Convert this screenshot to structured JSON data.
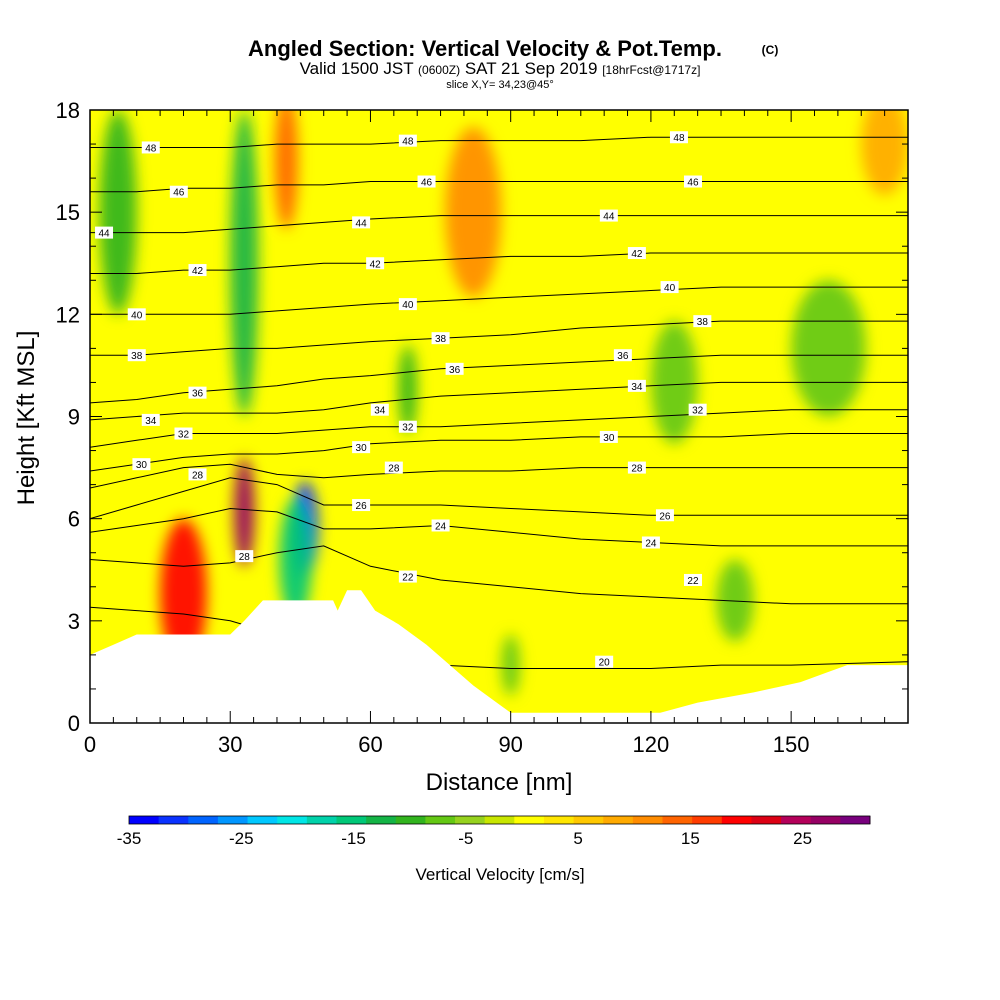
{
  "chart_data": {
    "type": "heatmap",
    "title": "Angled Section: Vertical Velocity & Pot.Temp.",
    "copyright": "(C)",
    "subtitle_valid": "Valid 1500 JST",
    "subtitle_utc": "(0600Z)",
    "subtitle_date": "SAT 21 Sep 2019",
    "subtitle_fcst": "[18hrFcst@1717z]",
    "slice": "slice X,Y= 34,23@45°",
    "xlabel": "Distance [nm]",
    "ylabel": "Height [Kft MSL]",
    "xlim": [
      0,
      175
    ],
    "ylim": [
      0,
      18
    ],
    "xticks": [
      0,
      30,
      60,
      90,
      120,
      150
    ],
    "yticks": [
      0,
      3,
      6,
      9,
      12,
      15,
      18
    ],
    "colorbar": {
      "label": "Vertical Velocity [cm/s]",
      "min": -35,
      "max": 31,
      "ticks": [
        -35,
        -25,
        -15,
        -5,
        5,
        15,
        25
      ],
      "colors": [
        "#0000ff",
        "#0a32ff",
        "#0064ff",
        "#0096ff",
        "#00c8ff",
        "#00e6e6",
        "#00d2aa",
        "#00c878",
        "#14b446",
        "#32b41e",
        "#64c814",
        "#96d21e",
        "#c8e600",
        "#ffff00",
        "#ffe600",
        "#ffc800",
        "#ffaa00",
        "#ff8c00",
        "#ff6400",
        "#ff3c00",
        "#ff0000",
        "#dc0014",
        "#b4005a",
        "#960064",
        "#78007d"
      ]
    },
    "terrain": [
      [
        0,
        2.0
      ],
      [
        5,
        2.3
      ],
      [
        10,
        2.6
      ],
      [
        30,
        2.6
      ],
      [
        33,
        3.0
      ],
      [
        37,
        3.6
      ],
      [
        52,
        3.6
      ],
      [
        53,
        3.3
      ],
      [
        55,
        3.9
      ],
      [
        58,
        3.9
      ],
      [
        61,
        3.3
      ],
      [
        66,
        2.9
      ],
      [
        72,
        2.3
      ],
      [
        77,
        1.7
      ],
      [
        82,
        1.1
      ],
      [
        87,
        0.6
      ],
      [
        90,
        0.3
      ],
      [
        122,
        0.3
      ],
      [
        130,
        0.6
      ],
      [
        142,
        0.9
      ],
      [
        152,
        1.2
      ],
      [
        158,
        1.5
      ],
      [
        162,
        1.7
      ],
      [
        175,
        1.7
      ]
    ],
    "theta_contours": [
      {
        "value": 20,
        "heights": [
          3.4,
          3.3,
          3.2,
          3.0,
          2.6,
          2.2,
          1.9,
          1.7,
          1.6,
          1.6,
          1.6,
          1.7,
          1.7,
          1.8
        ]
      },
      {
        "value": 22,
        "heights": [
          4.8,
          4.7,
          4.6,
          4.7,
          5.0,
          5.2,
          4.6,
          4.2,
          4.0,
          3.8,
          3.7,
          3.6,
          3.5,
          3.5
        ]
      },
      {
        "value": 24,
        "heights": [
          5.6,
          5.8,
          6.0,
          6.3,
          6.2,
          5.7,
          5.7,
          5.8,
          5.6,
          5.4,
          5.3,
          5.2,
          5.2,
          5.2
        ]
      },
      {
        "value": 26,
        "heights": [
          6.0,
          6.4,
          6.8,
          7.2,
          7.0,
          6.4,
          6.4,
          6.4,
          6.3,
          6.2,
          6.1,
          6.1,
          6.1,
          6.1
        ]
      },
      {
        "value": 28,
        "heights": [
          6.9,
          7.2,
          7.5,
          7.6,
          7.3,
          7.2,
          7.3,
          7.4,
          7.4,
          7.5,
          7.5,
          7.5,
          7.5,
          7.5
        ]
      },
      {
        "value": 30,
        "heights": [
          7.4,
          7.6,
          7.8,
          7.9,
          7.9,
          8.0,
          8.2,
          8.3,
          8.3,
          8.4,
          8.4,
          8.4,
          8.5,
          8.5
        ]
      },
      {
        "value": 32,
        "heights": [
          8.1,
          8.3,
          8.5,
          8.5,
          8.5,
          8.6,
          8.7,
          8.7,
          8.8,
          8.9,
          9.0,
          9.1,
          9.2,
          9.2
        ]
      },
      {
        "value": 34,
        "heights": [
          8.9,
          9.0,
          9.1,
          9.1,
          9.1,
          9.2,
          9.4,
          9.6,
          9.7,
          9.8,
          9.9,
          10.0,
          10.0,
          10.0
        ]
      },
      {
        "value": 36,
        "heights": [
          9.4,
          9.5,
          9.7,
          9.8,
          9.9,
          10.1,
          10.2,
          10.4,
          10.5,
          10.6,
          10.7,
          10.8,
          10.8,
          10.8
        ]
      },
      {
        "value": 38,
        "heights": [
          10.8,
          10.8,
          10.9,
          11.0,
          11.0,
          11.1,
          11.2,
          11.3,
          11.4,
          11.6,
          11.7,
          11.8,
          11.8,
          11.8
        ]
      },
      {
        "value": 40,
        "heights": [
          12.0,
          12.0,
          12.0,
          12.0,
          12.1,
          12.2,
          12.3,
          12.4,
          12.5,
          12.6,
          12.7,
          12.8,
          12.8,
          12.8
        ]
      },
      {
        "value": 42,
        "heights": [
          13.2,
          13.2,
          13.3,
          13.3,
          13.4,
          13.5,
          13.5,
          13.6,
          13.7,
          13.7,
          13.8,
          13.8,
          13.8,
          13.8
        ]
      },
      {
        "value": 44,
        "heights": [
          14.4,
          14.4,
          14.4,
          14.5,
          14.6,
          14.7,
          14.8,
          14.9,
          14.9,
          14.9,
          14.9,
          14.9,
          14.9,
          14.9
        ]
      },
      {
        "value": 46,
        "heights": [
          15.6,
          15.6,
          15.7,
          15.7,
          15.8,
          15.8,
          15.9,
          15.9,
          15.9,
          15.9,
          15.9,
          15.9,
          15.9,
          15.9
        ]
      },
      {
        "value": 48,
        "heights": [
          16.9,
          16.9,
          16.9,
          16.9,
          17.0,
          17.0,
          17.0,
          17.1,
          17.1,
          17.1,
          17.2,
          17.2,
          17.2,
          17.2
        ]
      }
    ],
    "contour_x": [
      0,
      10,
      20,
      30,
      40,
      50,
      60,
      75,
      90,
      105,
      120,
      135,
      150,
      175
    ],
    "contour_labels": [
      {
        "text": "48",
        "x": 13,
        "y": 16.9
      },
      {
        "text": "48",
        "x": 68,
        "y": 17.1
      },
      {
        "text": "48",
        "x": 126,
        "y": 17.2
      },
      {
        "text": "46",
        "x": 19,
        "y": 15.6
      },
      {
        "text": "46",
        "x": 72,
        "y": 15.9
      },
      {
        "text": "46",
        "x": 129,
        "y": 15.9
      },
      {
        "text": "44",
        "x": 3,
        "y": 14.4
      },
      {
        "text": "44",
        "x": 58,
        "y": 14.7
      },
      {
        "text": "44",
        "x": 111,
        "y": 14.9
      },
      {
        "text": "42",
        "x": 23,
        "y": 13.3
      },
      {
        "text": "42",
        "x": 61,
        "y": 13.5
      },
      {
        "text": "42",
        "x": 117,
        "y": 13.8
      },
      {
        "text": "40",
        "x": 10,
        "y": 12.0
      },
      {
        "text": "40",
        "x": 68,
        "y": 12.3
      },
      {
        "text": "40",
        "x": 124,
        "y": 12.8
      },
      {
        "text": "38",
        "x": 10,
        "y": 10.8
      },
      {
        "text": "38",
        "x": 75,
        "y": 11.3
      },
      {
        "text": "38",
        "x": 131,
        "y": 11.8
      },
      {
        "text": "36",
        "x": 23,
        "y": 9.7
      },
      {
        "text": "36",
        "x": 78,
        "y": 10.4
      },
      {
        "text": "36",
        "x": 114,
        "y": 10.8
      },
      {
        "text": "34",
        "x": 13,
        "y": 8.9
      },
      {
        "text": "34",
        "x": 62,
        "y": 9.2
      },
      {
        "text": "34",
        "x": 117,
        "y": 9.9
      },
      {
        "text": "32",
        "x": 20,
        "y": 8.5
      },
      {
        "text": "32",
        "x": 68,
        "y": 8.7
      },
      {
        "text": "32",
        "x": 130,
        "y": 9.2
      },
      {
        "text": "30",
        "x": 11,
        "y": 7.6
      },
      {
        "text": "30",
        "x": 58,
        "y": 8.1
      },
      {
        "text": "30",
        "x": 111,
        "y": 8.4
      },
      {
        "text": "28",
        "x": 23,
        "y": 7.3
      },
      {
        "text": "28",
        "x": 65,
        "y": 7.5
      },
      {
        "text": "28",
        "x": 117,
        "y": 7.5
      },
      {
        "text": "26",
        "x": 58,
        "y": 6.4
      },
      {
        "text": "26",
        "x": 123,
        "y": 6.1
      },
      {
        "text": "24",
        "x": 75,
        "y": 5.8
      },
      {
        "text": "24",
        "x": 120,
        "y": 5.3
      },
      {
        "text": "22",
        "x": 68,
        "y": 4.3
      },
      {
        "text": "22",
        "x": 129,
        "y": 4.2
      },
      {
        "text": "28",
        "x": 33,
        "y": 4.9
      },
      {
        "text": "20",
        "x": 110,
        "y": 1.8
      }
    ],
    "velocity_features": [
      {
        "x": 20,
        "y": 3.8,
        "rx": 5,
        "ry": 2.2,
        "value": 20
      },
      {
        "x": 33,
        "y": 6.2,
        "rx": 2.2,
        "ry": 1.6,
        "value": 28
      },
      {
        "x": 46,
        "y": 5.7,
        "rx": 2.8,
        "ry": 1.4,
        "value": -32
      },
      {
        "x": 44,
        "y": 4.8,
        "rx": 3.5,
        "ry": 1.8,
        "value": -15
      },
      {
        "x": 33,
        "y": 13.5,
        "rx": 3,
        "ry": 4.5,
        "value": -13
      },
      {
        "x": 6,
        "y": 15,
        "rx": 4,
        "ry": 3,
        "value": -11
      },
      {
        "x": 42,
        "y": 16.5,
        "rx": 2.5,
        "ry": 2,
        "value": 14
      },
      {
        "x": 82,
        "y": 15,
        "rx": 6,
        "ry": 2.5,
        "value": 10
      },
      {
        "x": 68,
        "y": 9.8,
        "rx": 2,
        "ry": 1.3,
        "value": -10
      },
      {
        "x": 125,
        "y": 10,
        "rx": 5,
        "ry": 1.8,
        "value": -6
      },
      {
        "x": 158,
        "y": 11,
        "rx": 8,
        "ry": 2,
        "value": -6
      },
      {
        "x": 90,
        "y": 1.7,
        "rx": 2,
        "ry": 0.9,
        "value": -6
      },
      {
        "x": 138,
        "y": 3.6,
        "rx": 4,
        "ry": 1.2,
        "value": -6
      },
      {
        "x": 170,
        "y": 17,
        "rx": 5,
        "ry": 1.5,
        "value": 9
      }
    ]
  }
}
